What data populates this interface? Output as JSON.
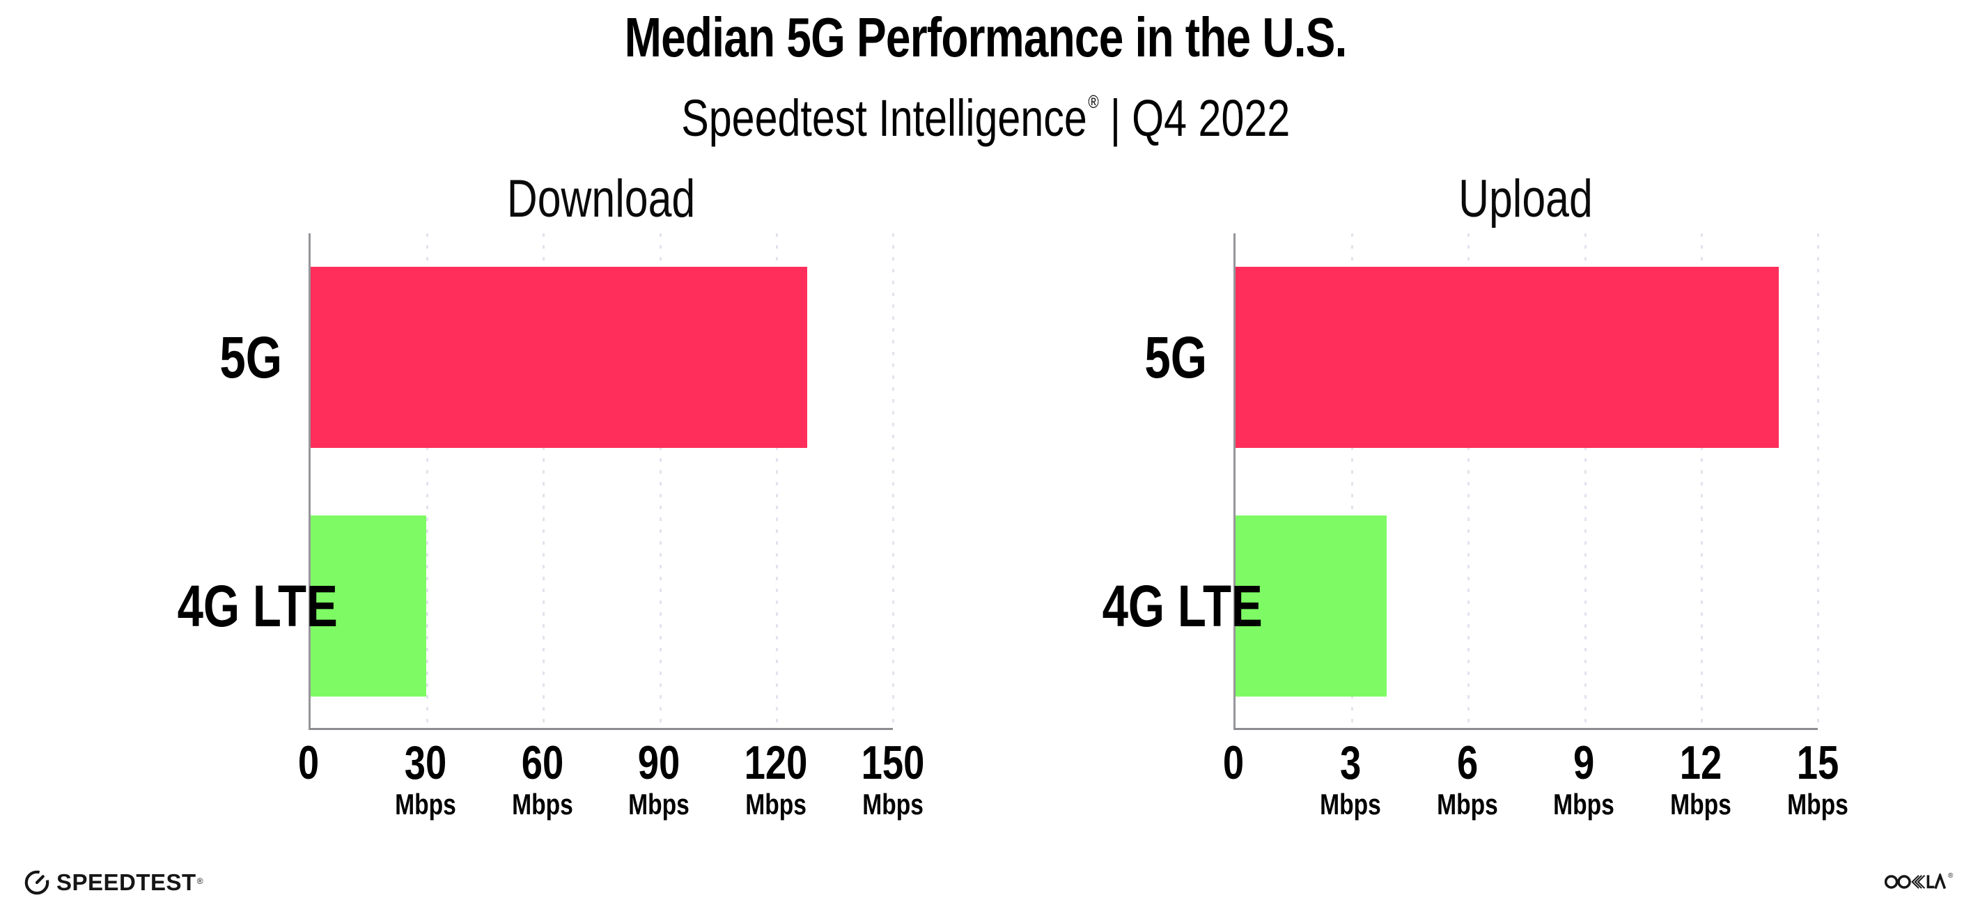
{
  "header": {
    "title": "Median 5G Performance in the U.S.",
    "subtitle": {
      "brand": "Speedtest Intelligence",
      "registered": "®",
      "separator": "|",
      "period": "Q4 2022"
    }
  },
  "chart_data": [
    {
      "type": "bar",
      "orientation": "horizontal",
      "title": "Download",
      "categories": [
        "5G",
        "4G LTE"
      ],
      "values": [
        128,
        29.7
      ],
      "unit": "Mbps",
      "xlim": [
        0,
        150
      ],
      "xticks": [
        0,
        30,
        60,
        90,
        120,
        150
      ],
      "grid": "dotted-vertical",
      "legend_position": "none",
      "bar_colors": [
        "#FF2E5B",
        "#7EFB64"
      ]
    },
    {
      "type": "bar",
      "orientation": "horizontal",
      "title": "Upload",
      "categories": [
        "5G",
        "4G LTE"
      ],
      "values": [
        14,
        3.9
      ],
      "unit": "Mbps",
      "xlim": [
        0,
        15
      ],
      "xticks": [
        0,
        3,
        6,
        9,
        12,
        15
      ],
      "grid": "dotted-vertical",
      "legend_position": "none",
      "bar_colors": [
        "#FF2E5B",
        "#7EFB64"
      ]
    }
  ],
  "footer": {
    "speedtest_label": "SPEEDTEST",
    "speedtest_registered": "®",
    "ookla_label": "OOKLA",
    "ookla_registered": "®"
  },
  "colors": {
    "bar_5g": "#FF2E5B",
    "bar_4g_lte": "#7EFB64",
    "axis": "#96969B",
    "gridline": "#E3E3EE",
    "text": "#000000",
    "background": "#FFFFFF"
  }
}
